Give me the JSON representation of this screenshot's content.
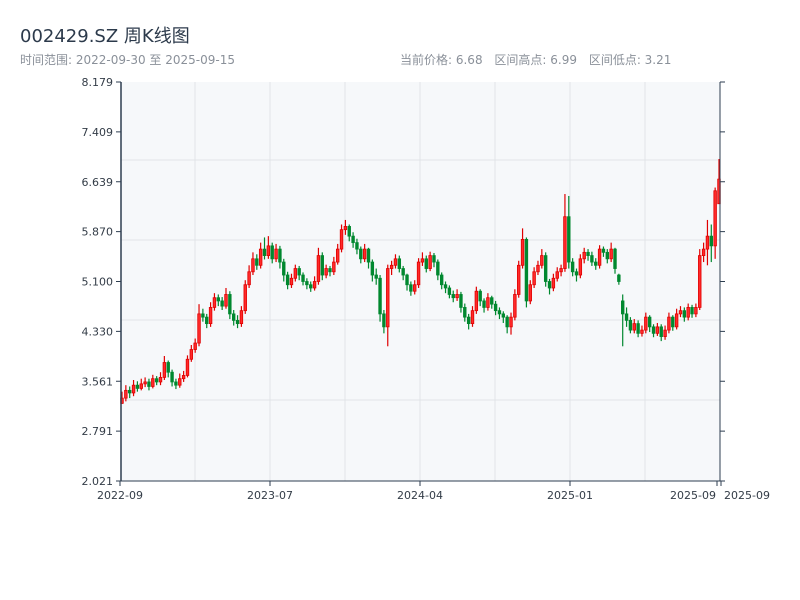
{
  "header": {
    "title": "002429.SZ 周K线图",
    "range_label": "时间范围: 2022-09-30 至 2025-09-15",
    "current_price": "当前价格: 6.68",
    "range_high": "区间高点: 6.99",
    "range_low": "区间低点: 3.21"
  },
  "chart_data": {
    "type": "candlestick",
    "title": "002429.SZ 周K线图",
    "ylim": [
      2.021,
      8.179
    ],
    "yticks": [
      "8.179",
      "7.409",
      "6.639",
      "5.870",
      "5.100",
      "4.330",
      "3.561",
      "2.791",
      "2.021"
    ],
    "xticks": [
      "2022-09",
      "2023-07",
      "2024-04",
      "2025-01",
      "2025-09",
      "2025-09"
    ],
    "grid": true,
    "colors": {
      "up": "#e00000",
      "up_fill": "#ff2a2a",
      "down": "#00882f",
      "axis": "#2e3e50",
      "grid": "#e1e4e8",
      "plot_bg": "#f6f8fa"
    },
    "columns": [
      "date",
      "open",
      "high",
      "low",
      "close"
    ],
    "candles": [
      [
        "2022-09-30",
        3.22,
        3.4,
        3.21,
        3.3
      ],
      [
        "2022-10-07",
        3.3,
        3.5,
        3.25,
        3.42
      ],
      [
        "2022-10-14",
        3.42,
        3.48,
        3.3,
        3.38
      ],
      [
        "2022-10-21",
        3.38,
        3.58,
        3.33,
        3.5
      ],
      [
        "2022-10-28",
        3.5,
        3.56,
        3.4,
        3.45
      ],
      [
        "2022-11-04",
        3.45,
        3.6,
        3.42,
        3.52
      ],
      [
        "2022-11-11",
        3.52,
        3.62,
        3.47,
        3.55
      ],
      [
        "2022-11-18",
        3.55,
        3.6,
        3.42,
        3.48
      ],
      [
        "2022-11-25",
        3.48,
        3.66,
        3.45,
        3.6
      ],
      [
        "2022-12-02",
        3.6,
        3.64,
        3.5,
        3.55
      ],
      [
        "2022-12-09",
        3.55,
        3.7,
        3.5,
        3.62
      ],
      [
        "2022-12-16",
        3.62,
        3.95,
        3.58,
        3.85
      ],
      [
        "2022-12-23",
        3.85,
        3.88,
        3.62,
        3.7
      ],
      [
        "2022-12-30",
        3.7,
        3.74,
        3.48,
        3.55
      ],
      [
        "2023-01-06",
        3.55,
        3.6,
        3.44,
        3.5
      ],
      [
        "2023-01-13",
        3.5,
        3.68,
        3.46,
        3.6
      ],
      [
        "2023-01-20",
        3.6,
        3.72,
        3.55,
        3.65
      ],
      [
        "2023-01-27",
        3.65,
        3.96,
        3.62,
        3.9
      ],
      [
        "2023-02-03",
        3.9,
        4.12,
        3.86,
        4.05
      ],
      [
        "2023-02-10",
        4.05,
        4.22,
        4.0,
        4.15
      ],
      [
        "2023-02-17",
        4.15,
        4.75,
        4.1,
        4.6
      ],
      [
        "2023-02-24",
        4.6,
        4.68,
        4.48,
        4.55
      ],
      [
        "2023-03-03",
        4.55,
        4.6,
        4.38,
        4.45
      ],
      [
        "2023-03-10",
        4.45,
        4.78,
        4.4,
        4.7
      ],
      [
        "2023-03-17",
        4.7,
        4.92,
        4.65,
        4.85
      ],
      [
        "2023-03-24",
        4.85,
        4.9,
        4.72,
        4.8
      ],
      [
        "2023-03-31",
        4.8,
        4.86,
        4.66,
        4.72
      ],
      [
        "2023-04-07",
        4.72,
        5.0,
        4.68,
        4.9
      ],
      [
        "2023-04-14",
        4.9,
        4.95,
        4.52,
        4.6
      ],
      [
        "2023-04-21",
        4.6,
        4.66,
        4.42,
        4.5
      ],
      [
        "2023-04-28",
        4.5,
        4.58,
        4.38,
        4.45
      ],
      [
        "2023-05-05",
        4.45,
        4.72,
        4.4,
        4.65
      ],
      [
        "2023-05-12",
        4.65,
        5.12,
        4.6,
        5.05
      ],
      [
        "2023-05-19",
        5.05,
        5.35,
        5.0,
        5.25
      ],
      [
        "2023-05-26",
        5.25,
        5.55,
        5.2,
        5.45
      ],
      [
        "2023-06-02",
        5.45,
        5.52,
        5.28,
        5.35
      ],
      [
        "2023-06-09",
        5.35,
        5.7,
        5.3,
        5.6
      ],
      [
        "2023-06-16",
        5.6,
        5.78,
        5.44,
        5.5
      ],
      [
        "2023-06-23",
        5.5,
        5.8,
        5.45,
        5.65
      ],
      [
        "2023-06-30",
        5.65,
        5.7,
        5.38,
        5.45
      ],
      [
        "2023-07-07",
        5.45,
        5.68,
        5.4,
        5.6
      ],
      [
        "2023-07-14",
        5.6,
        5.65,
        5.3,
        5.4
      ],
      [
        "2023-07-21",
        5.4,
        5.45,
        5.1,
        5.2
      ],
      [
        "2023-07-28",
        5.2,
        5.25,
        4.98,
        5.05
      ],
      [
        "2023-08-04",
        5.05,
        5.22,
        5.0,
        5.15
      ],
      [
        "2023-08-11",
        5.15,
        5.36,
        5.1,
        5.3
      ],
      [
        "2023-08-18",
        5.3,
        5.34,
        5.12,
        5.2
      ],
      [
        "2023-08-25",
        5.2,
        5.24,
        5.04,
        5.1
      ],
      [
        "2023-09-01",
        5.1,
        5.15,
        4.98,
        5.05
      ],
      [
        "2023-09-08",
        5.05,
        5.1,
        4.94,
        5.0
      ],
      [
        "2023-09-15",
        5.0,
        5.18,
        4.96,
        5.1
      ],
      [
        "2023-09-22",
        5.1,
        5.62,
        5.05,
        5.5
      ],
      [
        "2023-09-29",
        5.5,
        5.55,
        5.12,
        5.2
      ],
      [
        "2023-10-06",
        5.2,
        5.36,
        5.15,
        5.3
      ],
      [
        "2023-10-13",
        5.3,
        5.34,
        5.18,
        5.25
      ],
      [
        "2023-10-20",
        5.25,
        5.48,
        5.2,
        5.4
      ],
      [
        "2023-10-27",
        5.4,
        5.68,
        5.36,
        5.6
      ],
      [
        "2023-11-03",
        5.6,
        5.98,
        5.55,
        5.9
      ],
      [
        "2023-11-10",
        5.9,
        6.05,
        5.82,
        5.95
      ],
      [
        "2023-11-17",
        5.95,
        5.98,
        5.72,
        5.8
      ],
      [
        "2023-11-24",
        5.8,
        5.86,
        5.62,
        5.7
      ],
      [
        "2023-12-01",
        5.7,
        5.76,
        5.52,
        5.6
      ],
      [
        "2023-12-08",
        5.6,
        5.64,
        5.38,
        5.45
      ],
      [
        "2023-12-15",
        5.45,
        5.68,
        5.4,
        5.6
      ],
      [
        "2023-12-22",
        5.6,
        5.62,
        5.3,
        5.4
      ],
      [
        "2023-12-29",
        5.4,
        5.44,
        5.1,
        5.2
      ],
      [
        "2024-01-05",
        5.2,
        5.3,
        5.05,
        5.15
      ],
      [
        "2024-01-12",
        5.15,
        5.2,
        4.48,
        4.6
      ],
      [
        "2024-01-19",
        4.6,
        4.66,
        4.3,
        4.4
      ],
      [
        "2024-01-26",
        4.4,
        5.36,
        4.1,
        5.3
      ],
      [
        "2024-02-02",
        5.3,
        5.42,
        5.2,
        5.35
      ],
      [
        "2024-02-09",
        5.35,
        5.52,
        5.3,
        5.45
      ],
      [
        "2024-02-16",
        5.45,
        5.5,
        5.24,
        5.3
      ],
      [
        "2024-02-23",
        5.3,
        5.34,
        5.12,
        5.2
      ],
      [
        "2024-03-01",
        5.2,
        5.22,
        4.96,
        5.05
      ],
      [
        "2024-03-08",
        5.05,
        5.1,
        4.88,
        4.95
      ],
      [
        "2024-03-15",
        4.95,
        5.12,
        4.9,
        5.05
      ],
      [
        "2024-03-22",
        5.05,
        5.46,
        5.0,
        5.4
      ],
      [
        "2024-03-29",
        5.4,
        5.55,
        5.34,
        5.45
      ],
      [
        "2024-04-05",
        5.45,
        5.5,
        5.24,
        5.3
      ],
      [
        "2024-04-12",
        5.3,
        5.56,
        5.26,
        5.5
      ],
      [
        "2024-04-19",
        5.5,
        5.54,
        5.32,
        5.4
      ],
      [
        "2024-04-26",
        5.4,
        5.44,
        5.12,
        5.2
      ],
      [
        "2024-05-03",
        5.2,
        5.24,
        4.98,
        5.05
      ],
      [
        "2024-05-10",
        5.05,
        5.1,
        4.92,
        5.0
      ],
      [
        "2024-05-17",
        5.0,
        5.04,
        4.84,
        4.9
      ],
      [
        "2024-05-24",
        4.9,
        4.96,
        4.78,
        4.85
      ],
      [
        "2024-05-31",
        4.85,
        4.98,
        4.8,
        4.9
      ],
      [
        "2024-06-07",
        4.9,
        4.94,
        4.62,
        4.7
      ],
      [
        "2024-06-14",
        4.7,
        4.76,
        4.48,
        4.55
      ],
      [
        "2024-06-21",
        4.55,
        4.6,
        4.36,
        4.45
      ],
      [
        "2024-06-28",
        4.45,
        4.72,
        4.4,
        4.65
      ],
      [
        "2024-07-05",
        4.65,
        5.02,
        4.6,
        4.95
      ],
      [
        "2024-07-12",
        4.95,
        4.98,
        4.72,
        4.8
      ],
      [
        "2024-07-19",
        4.8,
        4.84,
        4.62,
        4.7
      ],
      [
        "2024-07-26",
        4.7,
        4.92,
        4.65,
        4.85
      ],
      [
        "2024-08-02",
        4.85,
        4.88,
        4.68,
        4.75
      ],
      [
        "2024-08-09",
        4.75,
        4.8,
        4.58,
        4.65
      ],
      [
        "2024-08-16",
        4.65,
        4.7,
        4.52,
        4.6
      ],
      [
        "2024-08-23",
        4.6,
        4.64,
        4.46,
        4.55
      ],
      [
        "2024-08-30",
        4.55,
        4.58,
        4.3,
        4.4
      ],
      [
        "2024-09-06",
        4.4,
        4.62,
        4.28,
        4.55
      ],
      [
        "2024-09-13",
        4.55,
        4.98,
        4.5,
        4.9
      ],
      [
        "2024-09-20",
        4.9,
        5.42,
        4.85,
        5.35
      ],
      [
        "2024-09-27",
        5.35,
        5.92,
        5.3,
        5.75
      ],
      [
        "2024-10-04",
        5.75,
        5.78,
        4.7,
        4.8
      ],
      [
        "2024-10-11",
        4.8,
        5.12,
        4.75,
        5.05
      ],
      [
        "2024-10-18",
        5.05,
        5.32,
        5.0,
        5.25
      ],
      [
        "2024-10-25",
        5.25,
        5.42,
        5.2,
        5.35
      ],
      [
        "2024-11-01",
        5.35,
        5.6,
        5.3,
        5.5
      ],
      [
        "2024-11-08",
        5.5,
        5.55,
        5.02,
        5.1
      ],
      [
        "2024-11-15",
        5.1,
        5.14,
        4.9,
        5.0
      ],
      [
        "2024-11-22",
        5.0,
        5.22,
        4.95,
        5.15
      ],
      [
        "2024-11-29",
        5.15,
        5.32,
        5.1,
        5.25
      ],
      [
        "2024-12-06",
        5.25,
        5.36,
        5.18,
        5.3
      ],
      [
        "2024-12-13",
        5.3,
        6.45,
        5.25,
        6.1
      ],
      [
        "2024-12-20",
        6.1,
        6.42,
        5.3,
        5.4
      ],
      [
        "2024-12-27",
        5.4,
        5.46,
        5.18,
        5.25
      ],
      [
        "2025-01-03",
        5.25,
        5.3,
        5.1,
        5.2
      ],
      [
        "2025-01-10",
        5.2,
        5.52,
        5.15,
        5.45
      ],
      [
        "2025-01-17",
        5.45,
        5.62,
        5.38,
        5.55
      ],
      [
        "2025-01-24",
        5.55,
        5.6,
        5.42,
        5.5
      ],
      [
        "2025-01-31",
        5.5,
        5.56,
        5.34,
        5.4
      ],
      [
        "2025-02-07",
        5.4,
        5.46,
        5.28,
        5.35
      ],
      [
        "2025-02-14",
        5.35,
        5.66,
        5.3,
        5.6
      ],
      [
        "2025-02-21",
        5.6,
        5.64,
        5.48,
        5.55
      ],
      [
        "2025-02-28",
        5.55,
        5.6,
        5.38,
        5.45
      ],
      [
        "2025-03-07",
        5.45,
        5.7,
        5.4,
        5.6
      ],
      [
        "2025-03-14",
        5.6,
        5.62,
        5.22,
        5.3
      ],
      [
        "2025-03-21",
        5.2,
        5.22,
        5.05,
        5.1
      ],
      [
        "2025-03-28",
        4.8,
        4.9,
        4.1,
        4.6
      ],
      [
        "2025-04-04",
        4.6,
        4.7,
        4.4,
        4.5
      ],
      [
        "2025-04-11",
        4.5,
        4.55,
        4.3,
        4.35
      ],
      [
        "2025-04-18",
        4.35,
        4.52,
        4.3,
        4.45
      ],
      [
        "2025-04-25",
        4.45,
        4.5,
        4.24,
        4.3
      ],
      [
        "2025-05-02",
        4.3,
        4.42,
        4.25,
        4.35
      ],
      [
        "2025-05-09",
        4.35,
        4.62,
        4.3,
        4.55
      ],
      [
        "2025-05-16",
        4.55,
        4.58,
        4.32,
        4.4
      ],
      [
        "2025-05-23",
        4.4,
        4.44,
        4.24,
        4.3
      ],
      [
        "2025-05-30",
        4.3,
        4.46,
        4.26,
        4.4
      ],
      [
        "2025-06-06",
        4.4,
        4.44,
        4.18,
        4.25
      ],
      [
        "2025-06-13",
        4.25,
        4.42,
        4.2,
        4.35
      ],
      [
        "2025-06-20",
        4.35,
        4.62,
        4.3,
        4.55
      ],
      [
        "2025-06-27",
        4.55,
        4.58,
        4.34,
        4.4
      ],
      [
        "2025-07-04",
        4.4,
        4.68,
        4.36,
        4.6
      ],
      [
        "2025-07-11",
        4.6,
        4.72,
        4.55,
        4.65
      ],
      [
        "2025-07-18",
        4.65,
        4.7,
        4.48,
        4.55
      ],
      [
        "2025-07-25",
        4.55,
        4.76,
        4.5,
        4.7
      ],
      [
        "2025-08-01",
        4.7,
        4.74,
        4.54,
        4.6
      ],
      [
        "2025-08-08",
        4.6,
        4.76,
        4.55,
        4.7
      ],
      [
        "2025-08-15",
        4.7,
        5.6,
        4.66,
        5.5
      ],
      [
        "2025-08-22",
        5.5,
        5.7,
        5.4,
        5.6
      ],
      [
        "2025-08-29",
        5.6,
        6.05,
        5.35,
        5.8
      ],
      [
        "2025-09-05",
        5.8,
        5.98,
        5.4,
        5.65
      ],
      [
        "2025-09-12",
        5.65,
        6.55,
        5.45,
        6.5
      ],
      [
        "2025-09-15",
        6.3,
        6.99,
        6.3,
        6.68
      ]
    ]
  }
}
